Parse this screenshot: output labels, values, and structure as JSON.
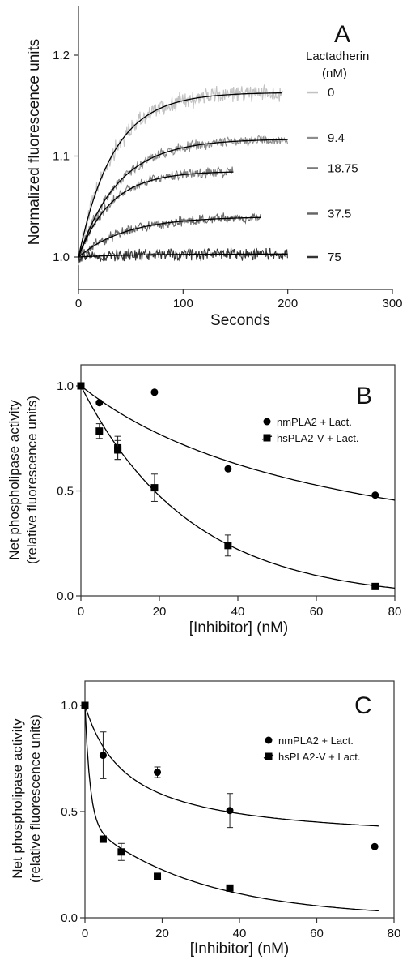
{
  "chart_data": [
    {
      "panel": "A",
      "type": "line",
      "xlabel": "Seconds",
      "ylabel": "Normalized fluorescence units",
      "xlim": [
        0,
        300
      ],
      "ylim": [
        0.99,
        1.23
      ],
      "xticks": [
        0,
        100,
        200,
        300
      ],
      "yticks": [
        1.0,
        1.1,
        1.2
      ],
      "ytick_labels": [
        "1.0",
        "1.1",
        "1.2"
      ],
      "legend_title": [
        "Lactadherin",
        "(nM)"
      ],
      "series": [
        {
          "name": "0",
          "color": "#c2c2c2",
          "x_end": 195,
          "plateau": 1.163,
          "k": 0.03
        },
        {
          "name": "9.4",
          "color": "#8c8c8c",
          "x_end": 200,
          "plateau": 1.117,
          "k": 0.026
        },
        {
          "name": "18.75",
          "color": "#7a7a7a",
          "x_end": 148,
          "plateau": 1.085,
          "k": 0.032
        },
        {
          "name": "37.5",
          "color": "#666666",
          "x_end": 175,
          "plateau": 1.04,
          "k": 0.022
        },
        {
          "name": "75",
          "color": "#333333",
          "x_end": 200,
          "plateau": 1.003,
          "k": 0.02
        }
      ]
    },
    {
      "panel": "B",
      "type": "scatter",
      "xlabel": "[Inhibitor] (nM)",
      "ylabel": [
        "Net phospholipase activity",
        "(relative fluorescence units)"
      ],
      "xlim": [
        0,
        80
      ],
      "ylim": [
        0,
        1.08
      ],
      "xticks": [
        0,
        20,
        40,
        60,
        80
      ],
      "yticks": [
        0.0,
        0.5,
        1.0
      ],
      "ytick_labels": [
        "0.0",
        "0.5",
        "1.0"
      ],
      "series": [
        {
          "name": "nmPLA2 + Lact.",
          "marker": "circle",
          "x": [
            0,
            4.7,
            18.75,
            37.5,
            75
          ],
          "y": [
            1.0,
            0.92,
            0.97,
            0.605,
            0.48
          ],
          "err": [
            0,
            0,
            0,
            0,
            0
          ],
          "fit": {
            "form": "hyperbolic",
            "ic50": 67,
            "ymin": 0.0
          }
        },
        {
          "name": "hsPLA2-V + Lact.",
          "marker": "square",
          "x": [
            0,
            4.7,
            9.4,
            9.4,
            18.75,
            37.5,
            75
          ],
          "y": [
            1.0,
            0.785,
            0.705,
            0.695,
            0.515,
            0.24,
            0.045
          ],
          "err": [
            0,
            0.035,
            0.055,
            0.045,
            0.065,
            0.05,
            0
          ],
          "fit": {
            "form": "exponential",
            "k": 0.036,
            "ymin": -0.02
          }
        }
      ]
    },
    {
      "panel": "C",
      "type": "scatter",
      "xlabel": "[Inhibitor] (nM)",
      "ylabel": [
        "Net phospholipase activity",
        "(relative fluorescence units)"
      ],
      "xlim": [
        0,
        80
      ],
      "ylim": [
        0,
        1.08
      ],
      "xticks": [
        0,
        20,
        40,
        60,
        80
      ],
      "yticks": [
        0.0,
        0.5,
        1.0
      ],
      "ytick_labels": [
        "0.0",
        "0.5",
        "1.0"
      ],
      "series": [
        {
          "name": "nmPLA2 + Lact.",
          "marker": "circle",
          "x": [
            0,
            4.7,
            18.75,
            37.5,
            75
          ],
          "y": [
            1.0,
            0.765,
            0.685,
            0.505,
            0.335
          ],
          "err": [
            0,
            0.11,
            0.025,
            0.08,
            0
          ],
          "fit": {
            "form": "hyperbolic_floor",
            "ic50": 11,
            "ymin": 0.35,
            "max_x": 76
          }
        },
        {
          "name": "hsPLA2-V + Lact.",
          "marker": "square",
          "x": [
            0,
            4.7,
            9.4,
            18.75,
            37.5
          ],
          "y": [
            1.0,
            0.37,
            0.31,
            0.195,
            0.14
          ],
          "err": [
            0,
            0.015,
            0.04,
            0.015,
            0.01
          ],
          "fit": {
            "form": "two_phase",
            "max_x": 76
          }
        }
      ]
    }
  ]
}
